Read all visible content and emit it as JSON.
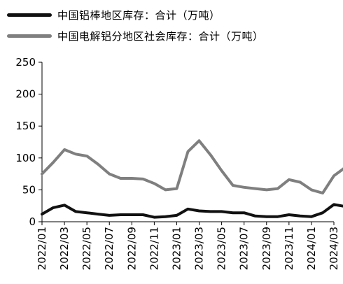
{
  "legend": [
    {
      "label": "中国铝棒地区库存：合计（万吨）",
      "color": "#111111"
    },
    {
      "label": "中国电解铝分地区社会库存：合计（万吨）",
      "color": "#7f7f7f"
    }
  ],
  "chart_data": {
    "type": "line",
    "title": "",
    "xlabel": "",
    "ylabel": "",
    "ylim": [
      0,
      250
    ],
    "yticks": [
      "0",
      "50",
      "100",
      "150",
      "200",
      "250"
    ],
    "x_labels": [
      "2022/01",
      "2022/03",
      "2022/05",
      "2022/07",
      "2022/09",
      "2022/11",
      "2023/01",
      "2023/03",
      "2023/05",
      "2023/07",
      "2023/09",
      "2023/11",
      "2024/01",
      "2024/03"
    ],
    "x_start": "2022/01",
    "x_end": "2024/03",
    "grid": false,
    "legend_position": "top-left",
    "series": [
      {
        "name": "中国铝棒地区库存：合计（万吨）",
        "color": "#111111",
        "points": [
          [
            "2022/01",
            12
          ],
          [
            "2022/02",
            22
          ],
          [
            "2022/03",
            26
          ],
          [
            "2022/04",
            16
          ],
          [
            "2022/05",
            14
          ],
          [
            "2022/06",
            12
          ],
          [
            "2022/07",
            10
          ],
          [
            "2022/08",
            11
          ],
          [
            "2022/09",
            11
          ],
          [
            "2022/10",
            11
          ],
          [
            "2022/11",
            7
          ],
          [
            "2022/12",
            8
          ],
          [
            "2023/01",
            10
          ],
          [
            "2023/02",
            20
          ],
          [
            "2023/03",
            17
          ],
          [
            "2023/04",
            16
          ],
          [
            "2023/05",
            16
          ],
          [
            "2023/06",
            14
          ],
          [
            "2023/07",
            14
          ],
          [
            "2023/08",
            9
          ],
          [
            "2023/09",
            8
          ],
          [
            "2023/10",
            8
          ],
          [
            "2023/11",
            11
          ],
          [
            "2023/12",
            9
          ],
          [
            "2024/01",
            8
          ],
          [
            "2024/02",
            14
          ],
          [
            "2024/03",
            27
          ],
          [
            "2024/04",
            24
          ]
        ]
      },
      {
        "name": "中国电解铝分地区社会库存：合计（万吨）",
        "color": "#7f7f7f",
        "points": [
          [
            "2022/01",
            75
          ],
          [
            "2022/02",
            93
          ],
          [
            "2022/03",
            113
          ],
          [
            "2022/04",
            106
          ],
          [
            "2022/05",
            103
          ],
          [
            "2022/06",
            90
          ],
          [
            "2022/07",
            75
          ],
          [
            "2022/08",
            68
          ],
          [
            "2022/09",
            68
          ],
          [
            "2022/10",
            67
          ],
          [
            "2022/11",
            60
          ],
          [
            "2022/12",
            50
          ],
          [
            "2023/01",
            52
          ],
          [
            "2023/02",
            110
          ],
          [
            "2023/03",
            127
          ],
          [
            "2023/04",
            105
          ],
          [
            "2023/05",
            80
          ],
          [
            "2023/06",
            57
          ],
          [
            "2023/07",
            54
          ],
          [
            "2023/08",
            52
          ],
          [
            "2023/09",
            50
          ],
          [
            "2023/10",
            52
          ],
          [
            "2023/11",
            66
          ],
          [
            "2023/12",
            62
          ],
          [
            "2024/01",
            50
          ],
          [
            "2024/02",
            45
          ],
          [
            "2024/03",
            72
          ],
          [
            "2024/04",
            85
          ]
        ]
      }
    ]
  }
}
